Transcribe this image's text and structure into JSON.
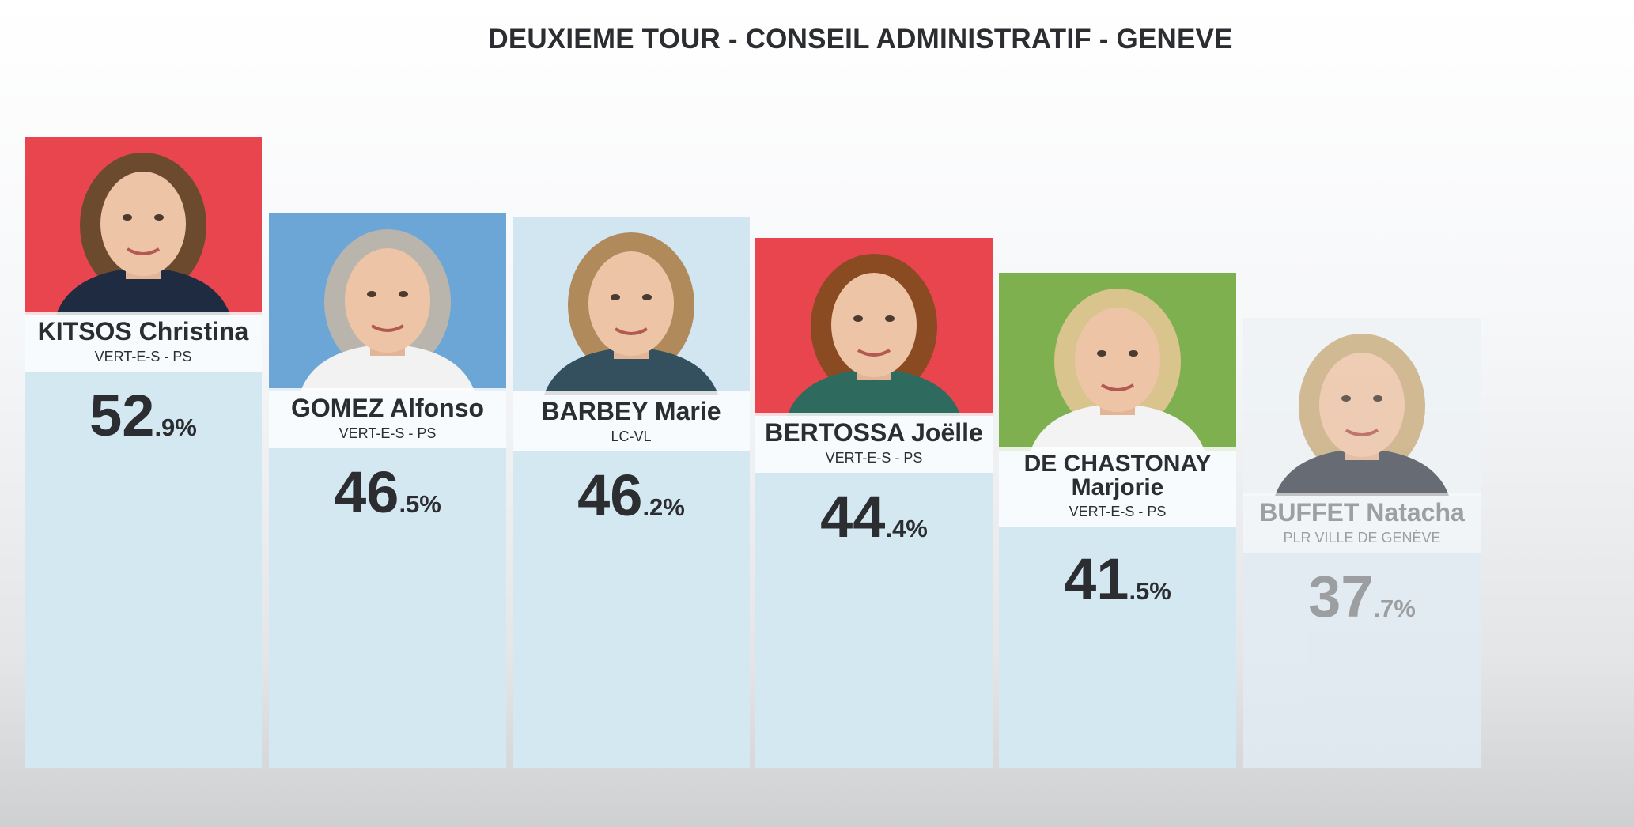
{
  "title": "DEUXIEME TOUR - CONSEIL ADMINISTRATIF - GENEVE",
  "chart_data": {
    "type": "bar",
    "title": "DEUXIEME TOUR - CONSEIL ADMINISTRATIF - GENEVE",
    "categories": [
      "KITSOS Christina",
      "GOMEZ Alfonso",
      "BARBEY Marie",
      "BERTOSSA Joëlle",
      "DE CHASTONAY Marjorie",
      "BUFFET Natacha"
    ],
    "values": [
      52.9,
      46.5,
      46.2,
      44.4,
      41.5,
      37.7
    ],
    "unit": "%",
    "candidates": [
      {
        "name": "KITSOS Christina",
        "party": "VERT-E-S - PS",
        "int": "52",
        "dec": ".9%",
        "value": 52.9,
        "photo_bg": "#e8454f",
        "hair": "#6b4a2e",
        "top": "#1f2b40",
        "elected": true
      },
      {
        "name": "GOMEZ Alfonso",
        "party": "VERT-E-S - PS",
        "int": "46",
        "dec": ".5%",
        "value": 46.5,
        "photo_bg": "#6ca6d6",
        "hair": "#b9b5ad",
        "top": "#f2f2f2",
        "elected": true
      },
      {
        "name": "BARBEY Marie",
        "party": "LC-VL",
        "int": "46",
        "dec": ".2%",
        "value": 46.2,
        "photo_bg": "#d2e6f1",
        "hair": "#b08a5a",
        "top": "#34505e",
        "elected": true
      },
      {
        "name": "BERTOSSA Joëlle",
        "party": "VERT-E-S - PS",
        "int": "44",
        "dec": ".4%",
        "value": 44.4,
        "photo_bg": "#e8454f",
        "hair": "#8a4a22",
        "top": "#2e6b5e",
        "elected": true
      },
      {
        "name": "DE CHASTONAY Marjorie",
        "party": "VERT-E-S - PS",
        "int": "41",
        "dec": ".5%",
        "value": 41.5,
        "photo_bg": "#7fb04f",
        "hair": "#d9c48d",
        "top": "#f3f3f3",
        "elected": true
      },
      {
        "name": "BUFFET Natacha",
        "party": "PLR VILLE DE GENÈVE",
        "int": "37",
        "dec": ".7%",
        "value": 37.7,
        "photo_bg": "#eef3f6",
        "hair": "#c9ad7e",
        "top": "#4a4f58",
        "elected": false
      }
    ],
    "ylim": [
      0,
      60
    ]
  }
}
